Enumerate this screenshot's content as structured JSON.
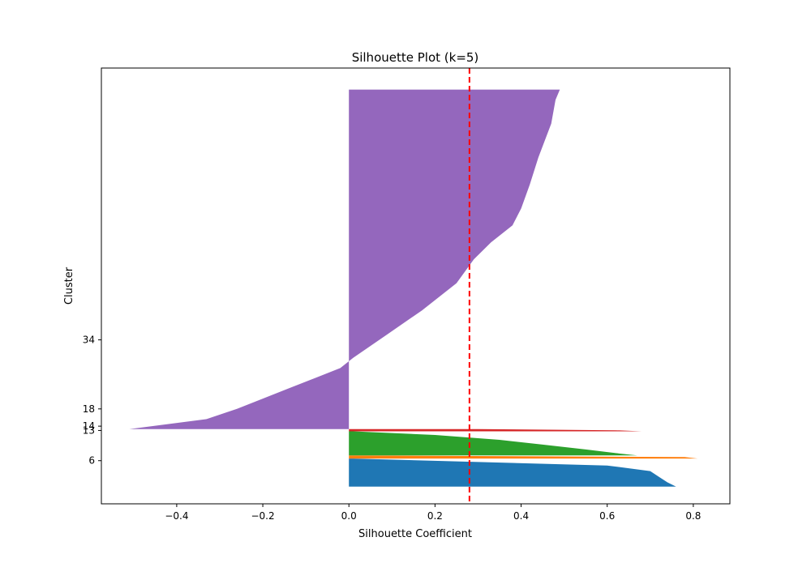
{
  "chart_data": {
    "type": "area",
    "title": "Silhouette Plot (k=5)",
    "xlabel": "Silhouette Coefficient",
    "ylabel": "Cluster",
    "xlim": [
      -0.575,
      0.885
    ],
    "ylim": [
      -4,
      97
    ],
    "x_ticks": [
      -0.4,
      -0.2,
      0.0,
      0.2,
      0.4,
      0.6,
      0.8
    ],
    "x_tick_labels": [
      "−0.4",
      "−0.2",
      "0.0",
      "0.2",
      "0.4",
      "0.6",
      "0.8"
    ],
    "y_ticks": [
      6,
      13,
      14,
      18,
      34
    ],
    "y_tick_labels": [
      "6",
      "13",
      "14",
      "18",
      "34"
    ],
    "average_silhouette": 0.28,
    "average_line_color": "#ff0000",
    "grid": false,
    "series": [
      {
        "color": "#1f77b4",
        "y_range": [
          0,
          6.5
        ],
        "profile": [
          [
            0,
            0.76
          ],
          [
            0.15,
            0.74
          ],
          [
            0.35,
            0.72
          ],
          [
            0.55,
            0.7
          ],
          [
            0.75,
            0.6
          ],
          [
            1.0,
            0.01
          ]
        ]
      },
      {
        "color": "#ff7f0e",
        "y_range": [
          6.5,
          7.2
        ],
        "profile": [
          [
            0,
            0.81
          ],
          [
            0.5,
            0.78
          ],
          [
            1.0,
            0.01
          ]
        ]
      },
      {
        "color": "#2ca02c",
        "y_range": [
          7.2,
          12.8
        ],
        "profile": [
          [
            0,
            0.67
          ],
          [
            0.1,
            0.62
          ],
          [
            0.25,
            0.55
          ],
          [
            0.45,
            0.45
          ],
          [
            0.65,
            0.35
          ],
          [
            0.85,
            0.2
          ],
          [
            1.0,
            0.01
          ]
        ]
      },
      {
        "color": "#d62728",
        "y_range": [
          12.8,
          13.3
        ],
        "profile": [
          [
            0,
            0.68
          ],
          [
            0.5,
            0.62
          ],
          [
            1.0,
            0.3
          ]
        ]
      },
      {
        "color": "#9467bd",
        "y_range": [
          13.3,
          92
        ],
        "profile": [
          [
            0,
            -0.51
          ],
          [
            0.03,
            -0.33
          ],
          [
            0.06,
            -0.26
          ],
          [
            0.09,
            -0.2
          ],
          [
            0.12,
            -0.14
          ],
          [
            0.15,
            -0.08
          ],
          [
            0.18,
            -0.02
          ],
          [
            0.21,
            0.01
          ],
          [
            0.28,
            0.09
          ],
          [
            0.35,
            0.17
          ],
          [
            0.43,
            0.25
          ],
          [
            0.5,
            0.29
          ],
          [
            0.55,
            0.33
          ],
          [
            0.6,
            0.38
          ],
          [
            0.65,
            0.4
          ],
          [
            0.72,
            0.42
          ],
          [
            0.8,
            0.44
          ],
          [
            0.9,
            0.47
          ],
          [
            0.97,
            0.48
          ],
          [
            1.0,
            0.49
          ]
        ]
      }
    ]
  }
}
